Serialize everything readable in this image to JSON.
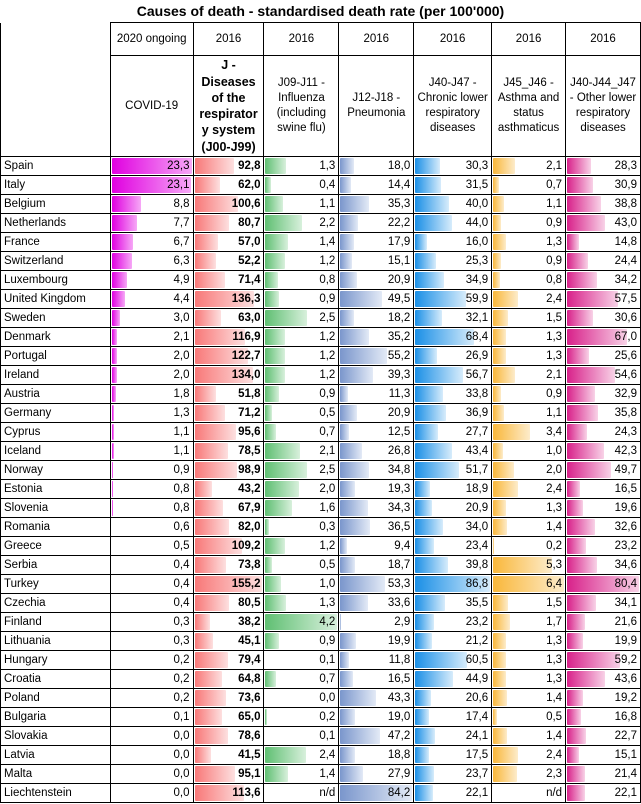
{
  "title": "Causes of death - standardised death rate (per 100'000)",
  "columns": [
    {
      "key": "covid",
      "period": "2020 ongoing",
      "label": "COVID-19",
      "bar": "b-covid",
      "bold": false
    },
    {
      "key": "resp",
      "period": "2016",
      "label": "J - Diseases of the respirator y system (J00-J99)",
      "bar": "b-resp",
      "bold": true
    },
    {
      "key": "flu",
      "period": "2016",
      "label": "J09-J11 - Influenza (including swine flu)",
      "bar": "b-flu",
      "bold": false
    },
    {
      "key": "pneu",
      "period": "2016",
      "label": "J12-J18 - Pneumonia",
      "bar": "b-pneu",
      "bold": false
    },
    {
      "key": "chr",
      "period": "2016",
      "label": "J40-J47 - Chronic lower respiratory diseases",
      "bar": "b-chr",
      "bold": false
    },
    {
      "key": "asth",
      "period": "2016",
      "label": "J45_J46 - Asthma and status asthmaticus",
      "bar": "b-asth",
      "bold": false
    },
    {
      "key": "oth",
      "period": "2016",
      "label": "J40-J44_J47 - Other lower respiratory diseases",
      "bar": "b-oth",
      "bold": false
    }
  ],
  "bar_max": {
    "covid": 23.3,
    "resp": 155.2,
    "flu": 4.2,
    "pneu": 84.2,
    "chr": 86.8,
    "asth": 6.4,
    "oth": 80.4
  },
  "rows": [
    {
      "country": "Spain",
      "values": [
        "23,3",
        "92,8",
        "1,3",
        "18,0",
        "30,3",
        "2,1",
        "28,3"
      ]
    },
    {
      "country": "Italy",
      "values": [
        "23,1",
        "62,0",
        "0,4",
        "14,4",
        "31,5",
        "0,7",
        "30,9"
      ]
    },
    {
      "country": "Belgium",
      "values": [
        "8,8",
        "100,6",
        "1,1",
        "35,3",
        "40,0",
        "1,1",
        "38,8"
      ]
    },
    {
      "country": "Netherlands",
      "values": [
        "7,7",
        "80,7",
        "2,2",
        "22,2",
        "44,0",
        "0,9",
        "43,0"
      ]
    },
    {
      "country": "France",
      "values": [
        "6,7",
        "57,0",
        "1,4",
        "17,9",
        "16,0",
        "1,3",
        "14,8"
      ]
    },
    {
      "country": "Switzerland",
      "values": [
        "6,3",
        "52,2",
        "1,2",
        "15,1",
        "25,3",
        "0,9",
        "24,4"
      ]
    },
    {
      "country": "Luxembourg",
      "values": [
        "4,9",
        "71,4",
        "0,8",
        "20,9",
        "34,9",
        "0,8",
        "34,2"
      ]
    },
    {
      "country": "United Kingdom",
      "values": [
        "4,4",
        "136,3",
        "0,9",
        "49,5",
        "59,9",
        "2,4",
        "57,5"
      ]
    },
    {
      "country": "Sweden",
      "values": [
        "3,0",
        "63,0",
        "2,5",
        "18,2",
        "32,1",
        "1,5",
        "30,6"
      ]
    },
    {
      "country": "Denmark",
      "values": [
        "2,1",
        "116,9",
        "1,2",
        "35,2",
        "68,4",
        "1,3",
        "67,0"
      ]
    },
    {
      "country": "Portugal",
      "values": [
        "2,0",
        "122,7",
        "1,2",
        "55,2",
        "26,9",
        "1,3",
        "25,6"
      ]
    },
    {
      "country": "Ireland",
      "values": [
        "2,0",
        "134,0",
        "1,2",
        "39,3",
        "56,7",
        "2,1",
        "54,6"
      ]
    },
    {
      "country": "Austria",
      "values": [
        "1,8",
        "51,8",
        "0,9",
        "11,3",
        "33,8",
        "0,9",
        "32,9"
      ]
    },
    {
      "country": "Germany",
      "values": [
        "1,3",
        "71,2",
        "0,5",
        "20,9",
        "36,9",
        "1,1",
        "35,8"
      ]
    },
    {
      "country": "Cyprus",
      "values": [
        "1,1",
        "95,6",
        "0,7",
        "12,5",
        "27,7",
        "3,4",
        "24,3"
      ]
    },
    {
      "country": "Iceland",
      "values": [
        "1,1",
        "78,5",
        "2,1",
        "26,8",
        "43,4",
        "1,0",
        "42,3"
      ]
    },
    {
      "country": "Norway",
      "values": [
        "0,9",
        "98,9",
        "2,5",
        "34,8",
        "51,7",
        "2,0",
        "49,7"
      ]
    },
    {
      "country": "Estonia",
      "values": [
        "0,8",
        "43,2",
        "2,0",
        "19,3",
        "18,9",
        "2,4",
        "16,5"
      ]
    },
    {
      "country": "Slovenia",
      "values": [
        "0,8",
        "67,9",
        "1,6",
        "34,3",
        "20,9",
        "1,3",
        "19,6"
      ]
    },
    {
      "country": "Romania",
      "values": [
        "0,6",
        "82,0",
        "0,3",
        "36,5",
        "34,0",
        "1,4",
        "32,6"
      ]
    },
    {
      "country": "Greece",
      "values": [
        "0,5",
        "109,2",
        "1,2",
        "9,4",
        "23,4",
        "0,2",
        "23,2"
      ]
    },
    {
      "country": "Serbia",
      "values": [
        "0,4",
        "73,8",
        "0,5",
        "18,7",
        "39,8",
        "5,3",
        "34,6"
      ]
    },
    {
      "country": "Turkey",
      "values": [
        "0,4",
        "155,2",
        "1,0",
        "53,3",
        "86,8",
        "6,4",
        "80,4"
      ]
    },
    {
      "country": "Czechia",
      "values": [
        "0,4",
        "80,5",
        "1,3",
        "33,6",
        "35,5",
        "1,5",
        "34,1"
      ]
    },
    {
      "country": "Finland",
      "values": [
        "0,3",
        "38,2",
        "4,2",
        "2,9",
        "23,2",
        "1,7",
        "21,6"
      ]
    },
    {
      "country": "Lithuania",
      "values": [
        "0,3",
        "45,1",
        "0,9",
        "19,9",
        "21,2",
        "1,3",
        "19,9"
      ]
    },
    {
      "country": "Hungary",
      "values": [
        "0,2",
        "79,4",
        "0,1",
        "11,8",
        "60,5",
        "1,3",
        "59,2"
      ]
    },
    {
      "country": "Croatia",
      "values": [
        "0,2",
        "64,8",
        "0,7",
        "16,5",
        "44,9",
        "1,3",
        "43,6"
      ]
    },
    {
      "country": "Poland",
      "values": [
        "0,2",
        "73,6",
        "0,0",
        "43,3",
        "20,6",
        "1,4",
        "19,2"
      ]
    },
    {
      "country": "Bulgaria",
      "values": [
        "0,1",
        "65,0",
        "0,2",
        "19,0",
        "17,4",
        "0,5",
        "16,8"
      ]
    },
    {
      "country": "Slovakia",
      "values": [
        "0,0",
        "78,6",
        "0,1",
        "47,2",
        "24,1",
        "1,4",
        "22,7"
      ]
    },
    {
      "country": "Latvia",
      "values": [
        "0,0",
        "41,5",
        "2,4",
        "18,8",
        "17,5",
        "2,4",
        "15,1"
      ]
    },
    {
      "country": "Malta",
      "values": [
        "0,0",
        "95,1",
        "1,4",
        "27,9",
        "23,7",
        "2,3",
        "21,4"
      ]
    },
    {
      "country": "Liechtenstein",
      "values": [
        "0,0",
        "113,6",
        "n/d",
        "84,2",
        "22,1",
        "n/d",
        "22,1"
      ]
    }
  ]
}
